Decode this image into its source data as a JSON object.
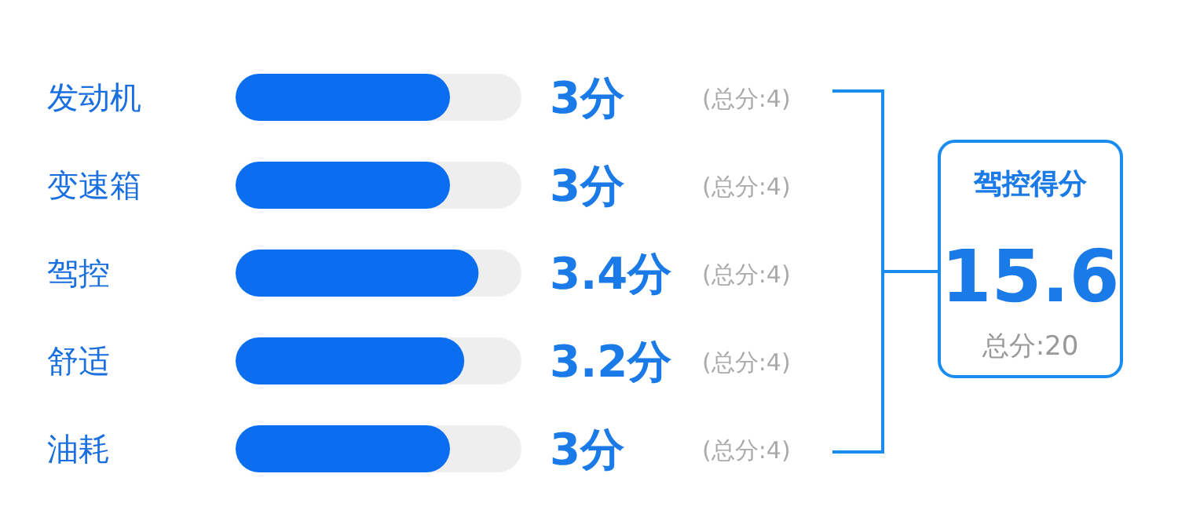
{
  "chart_data": [
    {
      "type": "bar",
      "orientation": "horizontal",
      "categories": [
        "发动机",
        "变速箱",
        "驾控",
        "舒适",
        "油耗"
      ],
      "values": [
        3,
        3,
        3.4,
        3.2,
        3
      ],
      "color": "#0b6ef0",
      "tick_labels": "y",
      "value_labels": [
        "3分",
        "3分",
        "3.4分",
        "3.2分",
        "3分"
      ],
      "annotations": [
        "(总分:4)",
        "(总分:4)",
        "(总分:4)",
        "(总分:4)",
        "(总分:4)"
      ]
    },
    {
      "type": "other",
      "title": "驾控得分",
      "annotations": [
        "15.6",
        "总分:20"
      ]
    }
  ]
}
